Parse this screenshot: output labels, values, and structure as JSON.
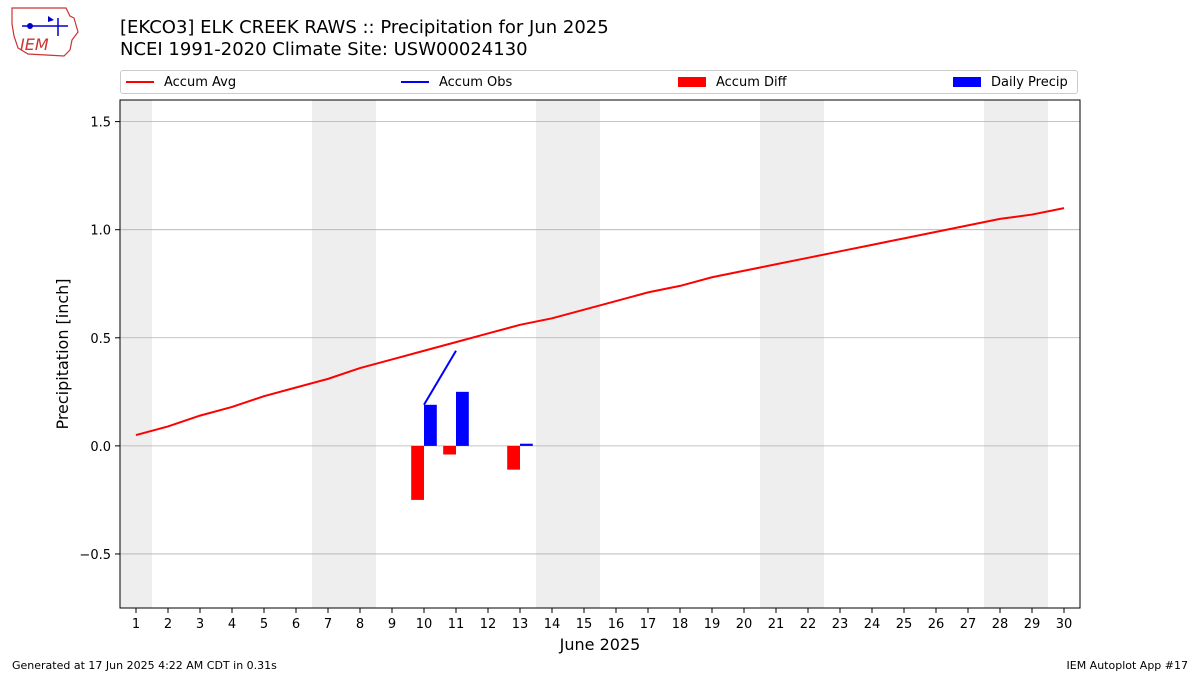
{
  "header": {
    "title_line1": "[EKCO3] ELK CREEK RAWS :: Precipitation for Jun 2025",
    "title_line2": "NCEI 1991-2020 Climate Site: USW00024130",
    "logo_text": "IEM"
  },
  "legend": {
    "accum_avg": "Accum Avg",
    "accum_obs": "Accum Obs",
    "accum_diff": "Accum Diff",
    "daily_precip": "Daily Precip"
  },
  "footer": {
    "generated": "Generated at 17 Jun 2025 4:22 AM CDT in 0.31s",
    "app": "IEM Autoplot App #17"
  },
  "colors": {
    "avg": "#ff0000",
    "obs": "#0000ff",
    "diff": "#ff0000",
    "daily": "#0000ff",
    "weekend": "#eeeeee",
    "grid": "#b0b0b0"
  },
  "chart_data": {
    "type": "bar",
    "title": "[EKCO3] ELK CREEK RAWS :: Precipitation for Jun 2025",
    "xlabel": "June 2025",
    "ylabel": "Precipitation [inch]",
    "x": [
      1,
      2,
      3,
      4,
      5,
      6,
      7,
      8,
      9,
      10,
      11,
      12,
      13,
      14,
      15,
      16,
      17,
      18,
      19,
      20,
      21,
      22,
      23,
      24,
      25,
      26,
      27,
      28,
      29,
      30
    ],
    "xlim": [
      0.5,
      30.5
    ],
    "ylim": [
      -0.75,
      1.6
    ],
    "yticks": [
      -0.5,
      0.0,
      0.5,
      1.0,
      1.5
    ],
    "ytick_labels": [
      "−0.5",
      "0.0",
      "0.5",
      "1.0",
      "1.5"
    ],
    "grid": "horizontal",
    "weekend_shading": [
      1,
      7,
      8,
      14,
      15,
      21,
      22,
      28,
      29
    ],
    "series": [
      {
        "name": "Accum Avg",
        "type": "line",
        "values": [
          0.05,
          0.09,
          0.14,
          0.18,
          0.23,
          0.27,
          0.31,
          0.36,
          0.4,
          0.44,
          0.48,
          0.52,
          0.56,
          0.59,
          0.63,
          0.67,
          0.71,
          0.74,
          0.78,
          0.81,
          0.84,
          0.87,
          0.9,
          0.93,
          0.96,
          0.99,
          1.02,
          1.05,
          1.07,
          1.1
        ]
      },
      {
        "name": "Accum Obs",
        "type": "line",
        "x": [
          10,
          11
        ],
        "values": [
          0.19,
          0.44
        ]
      },
      {
        "name": "Accum Diff",
        "type": "bar",
        "x": [
          10,
          11,
          13
        ],
        "values": [
          -0.25,
          -0.04,
          -0.11
        ]
      },
      {
        "name": "Daily Precip",
        "type": "bar",
        "x": [
          10,
          11,
          13
        ],
        "values": [
          0.19,
          0.25,
          0.01
        ]
      }
    ]
  }
}
